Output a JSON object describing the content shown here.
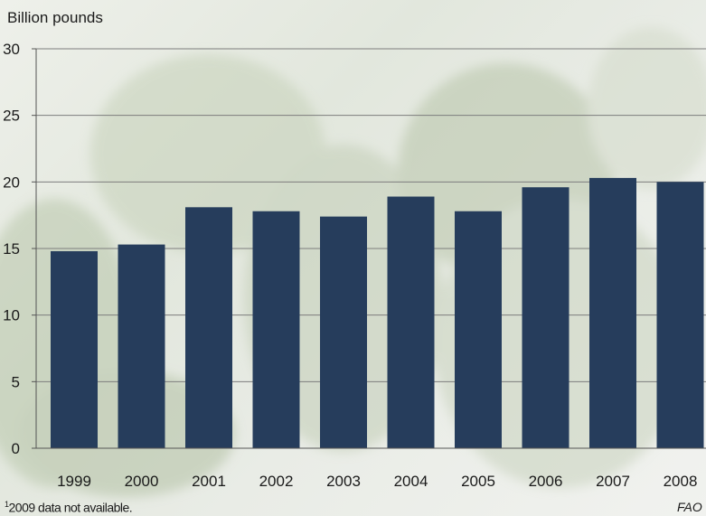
{
  "chart_data": {
    "type": "bar",
    "ylabel": "Billion pounds",
    "categories": [
      "1999",
      "2000",
      "2001",
      "2002",
      "2003",
      "2004",
      "2005",
      "2006",
      "2007",
      "2008"
    ],
    "values": [
      14.8,
      15.3,
      18.1,
      17.8,
      17.4,
      18.9,
      17.8,
      19.6,
      20.3,
      20.0
    ],
    "ylim": [
      0,
      30
    ],
    "yticks": [
      0,
      5,
      10,
      15,
      20,
      25,
      30
    ],
    "grid": true,
    "bar_color": "#263d5c",
    "footnote_marker": "1",
    "footnote": "2009 data not available.",
    "source": "FAO"
  }
}
